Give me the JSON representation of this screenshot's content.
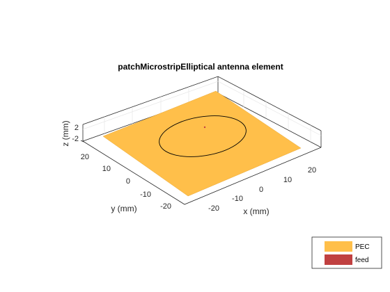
{
  "figure": {
    "title": "patchMicrostripElliptical antenna element",
    "axes": {
      "x_label": "x (mm)",
      "y_label": "y (mm)",
      "z_label": "z (mm)",
      "x_ticks": [
        "-20",
        "-10",
        "0",
        "10",
        "20"
      ],
      "y_ticks": [
        "-20",
        "-10",
        "0",
        "10",
        "20"
      ],
      "z_ticks": [
        "-2",
        "2"
      ]
    },
    "colors": {
      "pec": "#FFBF4A",
      "feed": "#C04040"
    },
    "legend": {
      "placement": "bottom-right",
      "items": [
        {
          "label": "PEC"
        },
        {
          "label": "feed"
        }
      ]
    }
  }
}
